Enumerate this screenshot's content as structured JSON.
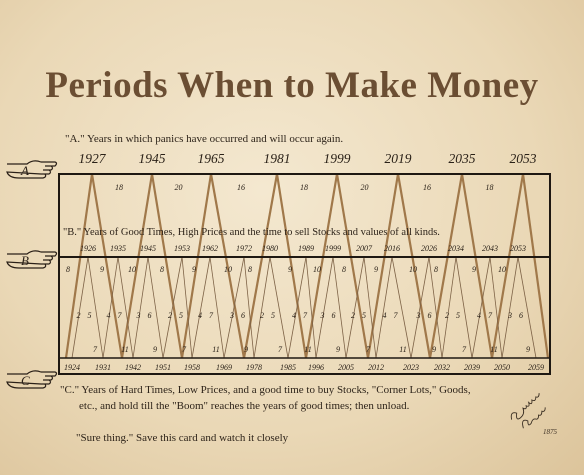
{
  "title": "Periods When to Make Money",
  "section_a": {
    "marker": "A",
    "text": "\"A.\" Years in which panics have occurred and will occur again.",
    "years": [
      "1927",
      "1945",
      "1965",
      "1981",
      "1999",
      "2019",
      "2035",
      "2053"
    ],
    "intervals": [
      "18",
      "20",
      "16",
      "18",
      "20",
      "16",
      "18"
    ]
  },
  "section_b": {
    "marker": "B",
    "text": "\"B.\" Years of Good Times, High Prices and the time to sell Stocks and values of all kinds.",
    "years": [
      "1926",
      "1935",
      "1945",
      "1953",
      "1962",
      "1972",
      "1980",
      "1989",
      "1999",
      "2007",
      "2016",
      "2026",
      "2034",
      "2043",
      "2053"
    ],
    "upper_numbers": [
      "8",
      "9",
      "10",
      "8",
      "9",
      "10",
      "8",
      "9",
      "10",
      "8",
      "9",
      "10",
      "8",
      "9",
      "10"
    ],
    "mid_numbers": [
      "2",
      "5",
      "4",
      "7",
      "3",
      "6",
      "2",
      "5",
      "4",
      "7",
      "3",
      "6",
      "2",
      "5",
      "4",
      "7",
      "3",
      "6",
      "2",
      "5",
      "4",
      "7",
      "3",
      "6",
      "2",
      "5",
      "4",
      "7",
      "3",
      "6"
    ],
    "lower_numbers": [
      "7",
      "11",
      "9",
      "7",
      "11",
      "9",
      "7",
      "11",
      "9",
      "7",
      "11",
      "9",
      "7",
      "11",
      "9"
    ]
  },
  "section_c": {
    "marker": "C",
    "years": [
      "1924",
      "1931",
      "1942",
      "1951",
      "1958",
      "1969",
      "1978",
      "1985",
      "1996",
      "2005",
      "2012",
      "2023",
      "2032",
      "2039",
      "2050",
      "2059"
    ],
    "text_line1": "\"C.\"  Years of Hard Times, Low Prices, and a good time to buy Stocks, \"Corner Lots,\" Goods,",
    "text_line2": "etc., and hold till  the \"Boom\" reaches the years of good times; then unload."
  },
  "footer": "\"Sure thing.\" Save this card and watch it closely",
  "signature": "Samuel Benner 1875",
  "colors": {
    "title": "#6b4e33",
    "line": "#a0784a",
    "frame": "#1e1812"
  }
}
